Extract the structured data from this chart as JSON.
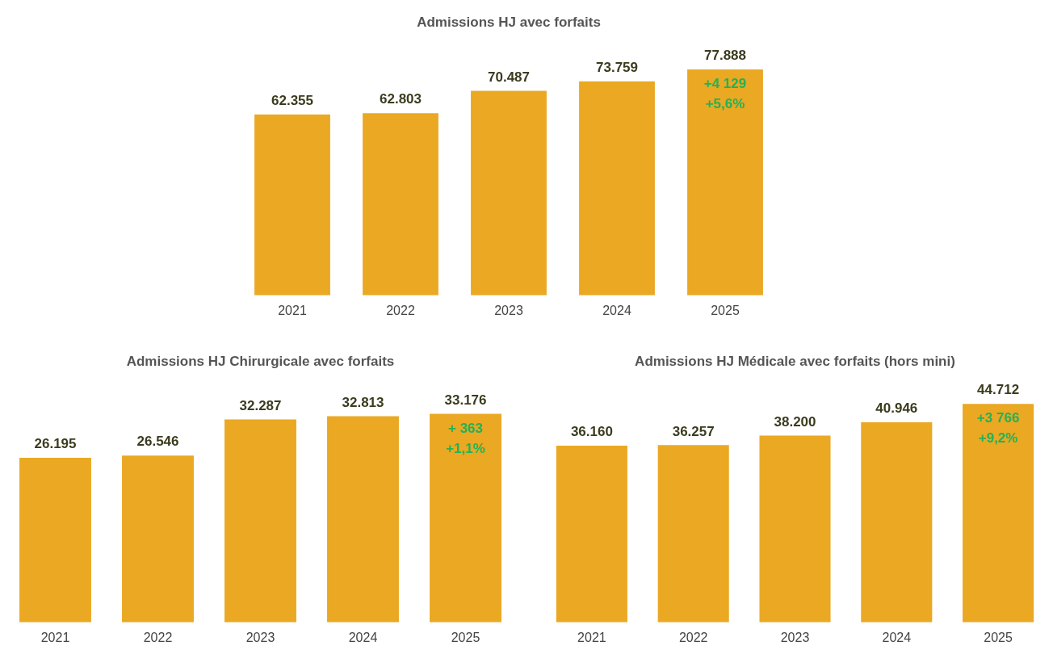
{
  "chart_data": [
    {
      "type": "bar",
      "title": "Admissions HJ avec forfaits",
      "categories": [
        "2021",
        "2022",
        "2023",
        "2024",
        "2025"
      ],
      "values": [
        62355,
        62803,
        70487,
        73759,
        77888
      ],
      "value_labels": [
        "62.355",
        "62.803",
        "70.487",
        "73.759",
        "77.888"
      ],
      "color": "#eaa823",
      "grid": false,
      "legend": false,
      "annotations": [
        "+4 129",
        "+5,6%"
      ]
    },
    {
      "type": "bar",
      "title": "Admissions HJ Chirurgicale avec forfaits",
      "categories": [
        "2021",
        "2022",
        "2023",
        "2024",
        "2025"
      ],
      "values": [
        26195,
        26546,
        32287,
        32813,
        33176
      ],
      "value_labels": [
        "26.195",
        "26.546",
        "32.287",
        "32.813",
        "33.176"
      ],
      "color": "#eaa823",
      "grid": false,
      "legend": false,
      "annotations": [
        "+ 363",
        "+1,1%"
      ]
    },
    {
      "type": "bar",
      "title": "Admissions HJ Médicale avec forfaits (hors mini)",
      "categories": [
        "2021",
        "2022",
        "2023",
        "2024",
        "2025"
      ],
      "values": [
        36160,
        36257,
        38200,
        40946,
        44712
      ],
      "value_labels": [
        "36.160",
        "36.257",
        "38.200",
        "40.946",
        "44.712"
      ],
      "color": "#eaa823",
      "grid": false,
      "legend": false,
      "annotations": [
        "+3 766",
        "+9,2%"
      ]
    }
  ]
}
